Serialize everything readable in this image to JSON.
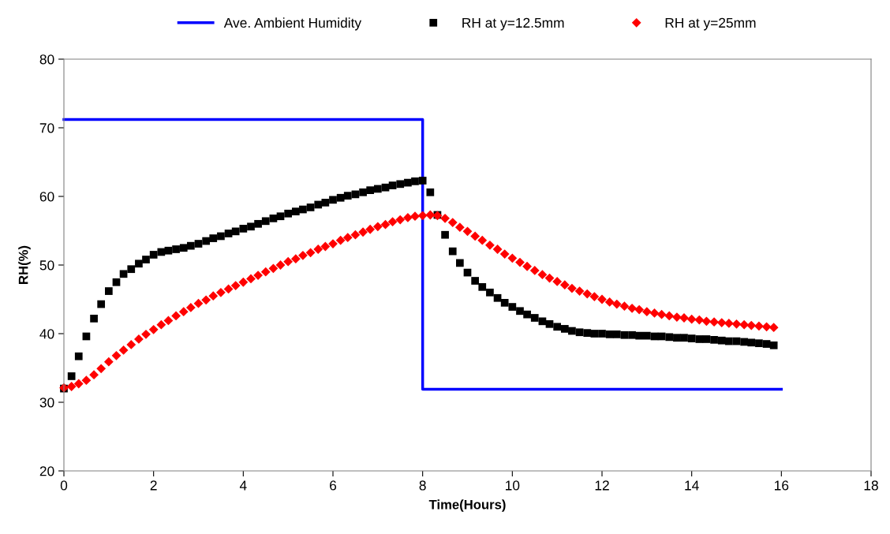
{
  "chart_data": {
    "type": "scatter",
    "xlabel": "Time(Hours)",
    "ylabel": "RH(%)",
    "xlim": [
      0,
      18
    ],
    "xticks": [
      0,
      2,
      4,
      6,
      8,
      10,
      12,
      14,
      16,
      18
    ],
    "ylim": [
      20,
      80
    ],
    "yticks": [
      20,
      30,
      40,
      50,
      60,
      70,
      80
    ],
    "grid": false,
    "legend": "top",
    "x": [
      0,
      0.17,
      0.33,
      0.5,
      0.67,
      0.83,
      1,
      1.17,
      1.33,
      1.5,
      1.67,
      1.83,
      2,
      2.17,
      2.33,
      2.5,
      2.67,
      2.83,
      3,
      3.17,
      3.33,
      3.5,
      3.67,
      3.83,
      4,
      4.17,
      4.33,
      4.5,
      4.67,
      4.83,
      5,
      5.17,
      5.33,
      5.5,
      5.67,
      5.83,
      6,
      6.17,
      6.33,
      6.5,
      6.67,
      6.83,
      7,
      7.17,
      7.33,
      7.5,
      7.67,
      7.83,
      8,
      8.17,
      8.33,
      8.5,
      8.67,
      8.83,
      9,
      9.17,
      9.33,
      9.5,
      9.67,
      9.83,
      10,
      10.17,
      10.33,
      10.5,
      10.67,
      10.83,
      11,
      11.17,
      11.33,
      11.5,
      11.67,
      11.83,
      12,
      12.17,
      12.33,
      12.5,
      12.67,
      12.83,
      13,
      13.17,
      13.33,
      13.5,
      13.67,
      13.83,
      14,
      14.17,
      14.33,
      14.5,
      14.67,
      14.83,
      15,
      15.17,
      15.33,
      15.5,
      15.67,
      15.83
    ],
    "series": [
      {
        "name": "Ave. Ambient Humidity",
        "type": "line",
        "color": "#0000ff",
        "marker": "none",
        "line_style": "solid",
        "x": [
          0,
          8,
          8,
          16
        ],
        "values": [
          71.2,
          71.2,
          31.9,
          31.9
        ]
      },
      {
        "name": "RH at y=12.5mm",
        "color": "#000000",
        "marker": "square",
        "values": [
          32.0,
          33.8,
          36.7,
          39.6,
          42.2,
          44.3,
          46.2,
          47.5,
          48.7,
          49.4,
          50.2,
          50.8,
          51.5,
          51.9,
          52.1,
          52.3,
          52.5,
          52.8,
          53.1,
          53.5,
          53.9,
          54.2,
          54.6,
          54.9,
          55.3,
          55.6,
          56.0,
          56.4,
          56.8,
          57.1,
          57.5,
          57.8,
          58.1,
          58.4,
          58.8,
          59.1,
          59.5,
          59.8,
          60.1,
          60.3,
          60.6,
          60.9,
          61.1,
          61.3,
          61.6,
          61.8,
          62.0,
          62.2,
          62.3,
          60.6,
          57.3,
          54.4,
          52.0,
          50.3,
          48.9,
          47.7,
          46.8,
          46.0,
          45.2,
          44.5,
          43.9,
          43.3,
          42.8,
          42.3,
          41.8,
          41.4,
          41.0,
          40.7,
          40.4,
          40.2,
          40.1,
          40.0,
          40.0,
          39.9,
          39.9,
          39.8,
          39.8,
          39.7,
          39.7,
          39.6,
          39.6,
          39.5,
          39.4,
          39.4,
          39.3,
          39.2,
          39.2,
          39.1,
          39.0,
          38.9,
          38.9,
          38.8,
          38.7,
          38.6,
          38.5,
          38.3
        ]
      },
      {
        "name": "RH at y=25mm",
        "color": "#ff0000",
        "marker": "diamond",
        "values": [
          32.1,
          32.3,
          32.7,
          33.2,
          34.0,
          34.9,
          35.9,
          36.8,
          37.6,
          38.4,
          39.2,
          39.9,
          40.6,
          41.3,
          41.9,
          42.6,
          43.2,
          43.8,
          44.4,
          44.9,
          45.5,
          46.0,
          46.5,
          47.0,
          47.5,
          48.0,
          48.5,
          49.0,
          49.5,
          50.0,
          50.5,
          50.9,
          51.4,
          51.8,
          52.3,
          52.7,
          53.1,
          53.6,
          54.0,
          54.4,
          54.8,
          55.2,
          55.6,
          55.9,
          56.3,
          56.6,
          56.9,
          57.1,
          57.2,
          57.3,
          57.2,
          56.8,
          56.2,
          55.5,
          54.9,
          54.2,
          53.6,
          52.9,
          52.3,
          51.6,
          51.0,
          50.4,
          49.8,
          49.2,
          48.6,
          48.1,
          47.6,
          47.1,
          46.6,
          46.2,
          45.8,
          45.4,
          45.0,
          44.6,
          44.3,
          44.0,
          43.7,
          43.5,
          43.2,
          43.0,
          42.8,
          42.6,
          42.4,
          42.3,
          42.1,
          42.0,
          41.8,
          41.7,
          41.6,
          41.5,
          41.4,
          41.3,
          41.2,
          41.1,
          41.0,
          40.9
        ]
      }
    ]
  }
}
